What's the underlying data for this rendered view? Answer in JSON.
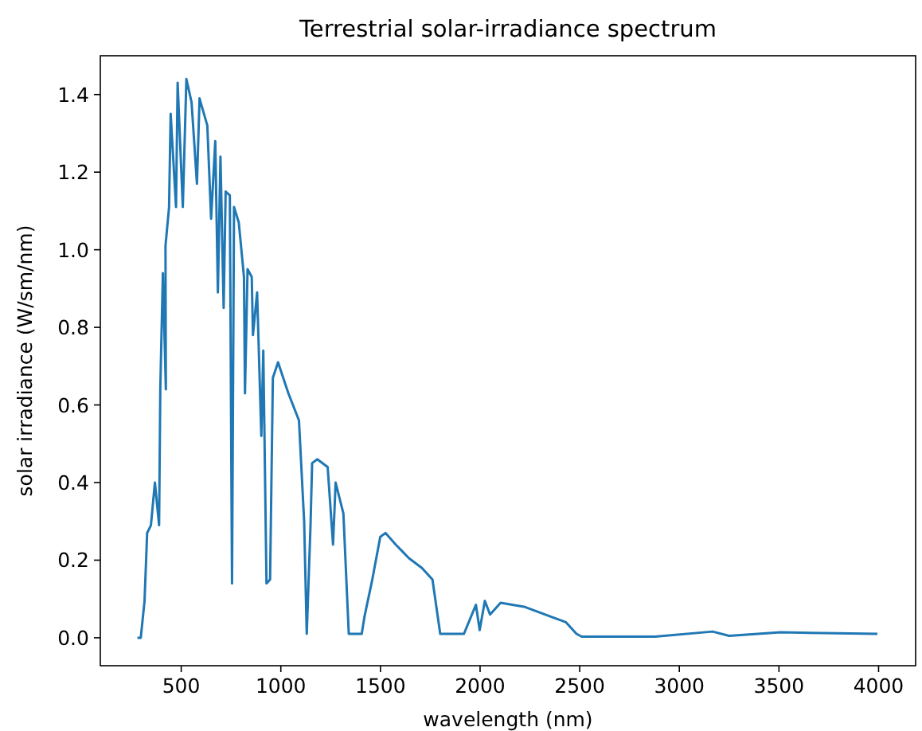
{
  "chart_data": {
    "type": "line",
    "title": "Terrestrial solar-irradiance spectrum",
    "xlabel": "wavelength (nm)",
    "ylabel": "solar irradiance (W/sm/nm)",
    "xlim": [
      94,
      4186
    ],
    "ylim": [
      -0.072,
      1.5
    ],
    "xticks": [
      500,
      1000,
      1500,
      2000,
      2500,
      3000,
      3500,
      4000
    ],
    "yticks": [
      {
        "value": 0,
        "label": "0.0"
      },
      {
        "value": 0.2,
        "label": "0.2"
      },
      {
        "value": 0.4,
        "label": "0.4"
      },
      {
        "value": 0.6,
        "label": "0.6"
      },
      {
        "value": 0.8,
        "label": "0.8"
      },
      {
        "value": 1,
        "label": "1.0"
      },
      {
        "value": 1.2,
        "label": "1.2"
      },
      {
        "value": 1.4,
        "label": "1.4"
      }
    ],
    "grid": false,
    "marker": "none",
    "line_style": "solid",
    "series": [
      {
        "color": "#1f77b4",
        "x": [
          280,
          297,
          316,
          329,
          348,
          368,
          389,
          395,
          408,
          423,
          421,
          439,
          447,
          474,
          482,
          508,
          526,
          552,
          579,
          592,
          631,
          650,
          671,
          684,
          697,
          713,
          723,
          744,
          755,
          765,
          789,
          815,
          820,
          833,
          854,
          860,
          881,
          902,
          912,
          928,
          946,
          960,
          986,
          1038,
          1091,
          1117,
          1130,
          1149,
          1157,
          1183,
          1235,
          1262,
          1275,
          1314,
          1341,
          1406,
          1420,
          1459,
          1499,
          1525,
          1577,
          1643,
          1708,
          1761,
          1800,
          1919,
          1979,
          1998,
          2024,
          2050,
          2103,
          2221,
          2352,
          2431,
          2484,
          2510,
          2878,
          3167,
          3250,
          3509,
          3994
        ],
        "values": [
          0,
          0,
          0.095,
          0.27,
          0.29,
          0.4,
          0.29,
          0.64,
          0.94,
          0.64,
          1.01,
          1.11,
          1.35,
          1.11,
          1.43,
          1.11,
          1.44,
          1.38,
          1.17,
          1.39,
          1.32,
          1.08,
          1.28,
          0.89,
          1.24,
          0.85,
          1.15,
          1.14,
          0.14,
          1.11,
          1.07,
          0.93,
          0.63,
          0.95,
          0.93,
          0.78,
          0.89,
          0.52,
          0.74,
          0.14,
          0.15,
          0.67,
          0.71,
          0.63,
          0.56,
          0.3,
          0.01,
          0.29,
          0.45,
          0.46,
          0.44,
          0.24,
          0.4,
          0.32,
          0.01,
          0.01,
          0.055,
          0.15,
          0.26,
          0.27,
          0.24,
          0.205,
          0.18,
          0.15,
          0.01,
          0.01,
          0.085,
          0.02,
          0.095,
          0.06,
          0.09,
          0.08,
          0.055,
          0.04,
          0.01,
          0.003,
          0.003,
          0.016,
          0.005,
          0.014,
          0.01
        ]
      }
    ]
  }
}
